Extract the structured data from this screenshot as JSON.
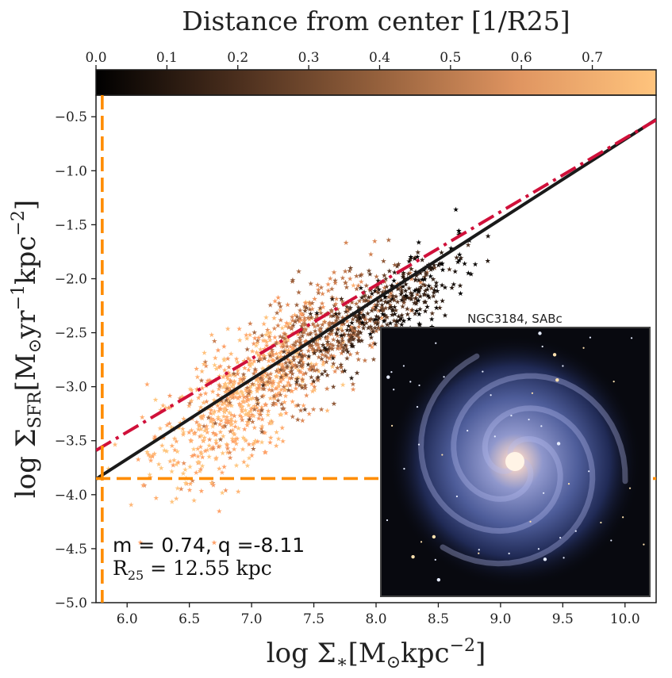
{
  "chart_data": {
    "type": "scatter",
    "title": "",
    "xlabel": "log Σ*[M⊙kpc^-2]",
    "ylabel": "log ΣSFR[M⊙yr^-1kpc^-2]",
    "xlim": [
      5.75,
      10.25
    ],
    "ylim": [
      -5.0,
      -0.3
    ],
    "x_ticks": [
      6.0,
      6.5,
      7.0,
      7.5,
      8.0,
      8.5,
      9.0,
      9.5,
      10.0
    ],
    "x_tick_labels": [
      "6.0",
      "6.5",
      "7.0",
      "7.5",
      "8.0",
      "8.5",
      "9.0",
      "9.5",
      "10.0"
    ],
    "y_ticks": [
      -5.0,
      -4.5,
      -4.0,
      -3.5,
      -3.0,
      -2.5,
      -2.0,
      -1.5,
      -1.0,
      -0.5
    ],
    "y_tick_labels": [
      "−5.0",
      "−4.5",
      "−4.0",
      "−3.5",
      "−3.0",
      "−2.5",
      "−2.0",
      "−1.5",
      "−1.0",
      "−0.5"
    ],
    "colorbar": {
      "label": "Distance from center [1/R25]",
      "range": [
        0.0,
        0.79
      ],
      "ticks": [
        0.0,
        0.1,
        0.2,
        0.3,
        0.4,
        0.5,
        0.6,
        0.7
      ],
      "tick_labels": [
        "0.0",
        "0.1",
        "0.2",
        "0.3",
        "0.4",
        "0.5",
        "0.6",
        "0.7"
      ],
      "colormap": "copper"
    },
    "series": [
      {
        "kind": "scatter",
        "marker": "star",
        "point_count_approx": 1500,
        "regions": [
          {
            "x_mean": 6.9,
            "y_mean": -3.1,
            "x_sd": 0.35,
            "y_sd": 0.35,
            "distance": 0.7
          },
          {
            "x_mean": 7.5,
            "y_mean": -2.6,
            "x_sd": 0.3,
            "y_sd": 0.3,
            "distance": 0.45
          },
          {
            "x_mean": 8.0,
            "y_mean": -2.3,
            "x_sd": 0.25,
            "y_sd": 0.2,
            "distance": 0.2
          },
          {
            "x_mean": 8.4,
            "y_mean": -2.1,
            "x_sd": 0.2,
            "y_sd": 0.2,
            "distance": 0.05
          }
        ]
      },
      {
        "kind": "fit_line",
        "slope": 0.74,
        "intercept": -8.11,
        "color": "#1a1a1a",
        "style": "solid"
      },
      {
        "kind": "reference_line",
        "slope": 0.68,
        "intercept": -7.5,
        "color": "#d0103a",
        "style": "dash-dot"
      },
      {
        "kind": "threshold_vertical",
        "x": 5.8,
        "color": "#ff8c00",
        "style": "dashed"
      },
      {
        "kind": "threshold_horizontal",
        "y": -3.85,
        "color": "#ff8c00",
        "style": "dashed"
      }
    ],
    "annotations": {
      "fit_text": "m = 0.74, q =-8.11",
      "radius_text": "R25 = 12.55 kpc"
    },
    "inset": {
      "title": "NGC3184, SABc",
      "image": "face-on spiral galaxy"
    },
    "grid": false
  }
}
